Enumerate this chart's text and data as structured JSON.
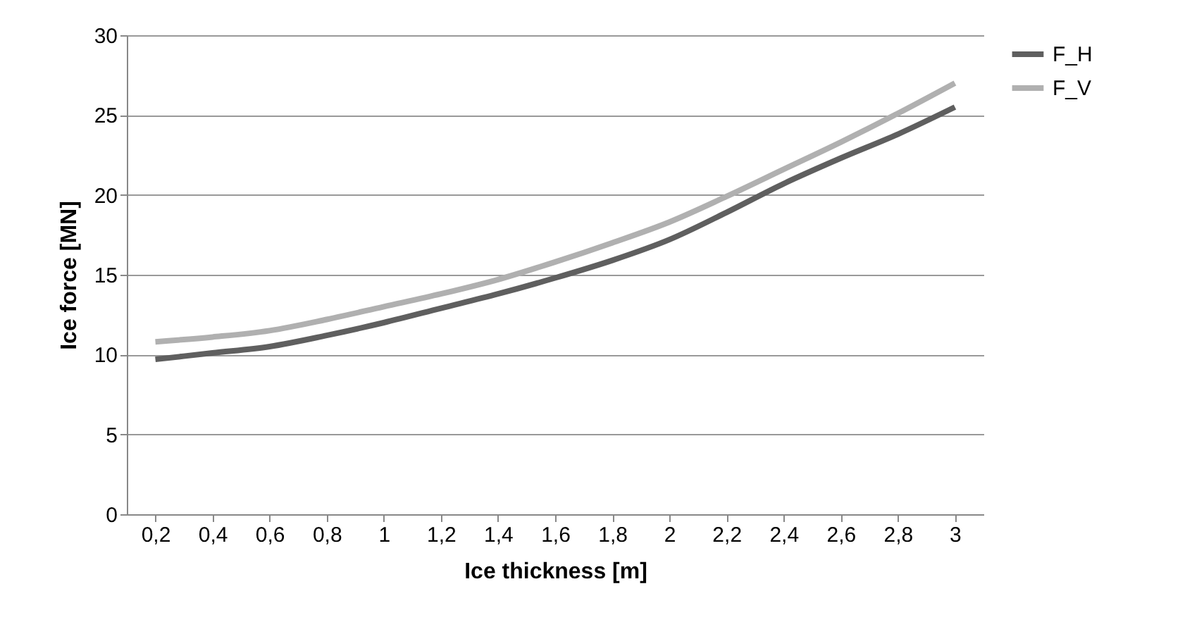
{
  "chart_data": {
    "type": "line",
    "xlabel": "Ice thickness [m]",
    "ylabel": "Ice force [MN]",
    "categories": [
      "0,2",
      "0,4",
      "0,6",
      "0,8",
      "1",
      "1,2",
      "1,4",
      "1,6",
      "1,8",
      "2",
      "2,2",
      "2,4",
      "2,6",
      "2,8",
      "3"
    ],
    "series": [
      {
        "name": "F_H",
        "color": "#5f5f5f",
        "values": [
          9.7,
          10.1,
          10.5,
          11.2,
          12.0,
          12.9,
          13.8,
          14.8,
          15.9,
          17.2,
          18.9,
          20.7,
          22.3,
          23.8,
          25.5
        ]
      },
      {
        "name": "F_V",
        "color": "#b0b0b0",
        "values": [
          10.8,
          11.1,
          11.5,
          12.2,
          13.0,
          13.8,
          14.7,
          15.8,
          17.0,
          18.3,
          19.9,
          21.6,
          23.3,
          25.1,
          27.0
        ]
      }
    ],
    "ylim": [
      0,
      30
    ],
    "yticks": [
      0,
      5,
      10,
      15,
      20,
      25,
      30
    ],
    "grid": "y",
    "legend": "right",
    "marker": "none",
    "line_style": "solid"
  }
}
